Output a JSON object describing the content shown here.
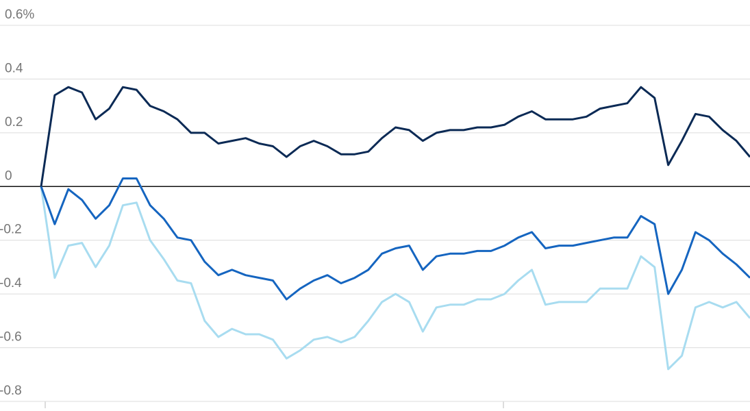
{
  "chart_data": {
    "type": "line",
    "ylim": [
      -0.8,
      0.6
    ],
    "yticks": [
      -0.8,
      -0.6,
      -0.4,
      -0.2,
      0,
      0.2,
      0.4,
      {
        "value": 0.6,
        "label": "0.6%"
      }
    ],
    "grid": true,
    "series": [
      {
        "color": "#0b2a55",
        "values": [
          0,
          0.34,
          0.37,
          0.35,
          0.25,
          0.29,
          0.37,
          0.36,
          0.3,
          0.28,
          0.25,
          0.2,
          0.2,
          0.16,
          0.17,
          0.18,
          0.16,
          0.15,
          0.11,
          0.15,
          0.17,
          0.15,
          0.12,
          0.12,
          0.13,
          0.18,
          0.22,
          0.21,
          0.17,
          0.2,
          0.21,
          0.21,
          0.22,
          0.22,
          0.23,
          0.26,
          0.28,
          0.25,
          0.25,
          0.25,
          0.26,
          0.29,
          0.3,
          0.31,
          0.37,
          0.33,
          0.08,
          0.17,
          0.27,
          0.26,
          0.21,
          0.17,
          0.11
        ]
      },
      {
        "color": "#1565c0",
        "values": [
          0,
          -0.14,
          -0.01,
          -0.05,
          -0.12,
          -0.07,
          0.03,
          0.03,
          -0.07,
          -0.12,
          -0.19,
          -0.2,
          -0.28,
          -0.33,
          -0.31,
          -0.33,
          -0.34,
          -0.35,
          -0.42,
          -0.38,
          -0.35,
          -0.33,
          -0.36,
          -0.34,
          -0.31,
          -0.25,
          -0.23,
          -0.22,
          -0.31,
          -0.26,
          -0.25,
          -0.25,
          -0.24,
          -0.24,
          -0.22,
          -0.19,
          -0.17,
          -0.23,
          -0.22,
          -0.22,
          -0.21,
          -0.2,
          -0.19,
          -0.19,
          -0.11,
          -0.14,
          -0.4,
          -0.31,
          -0.17,
          -0.2,
          -0.25,
          -0.29,
          -0.34
        ]
      },
      {
        "color": "#a8dcf0",
        "values": [
          0,
          -0.34,
          -0.22,
          -0.21,
          -0.3,
          -0.22,
          -0.07,
          -0.06,
          -0.2,
          -0.27,
          -0.35,
          -0.36,
          -0.5,
          -0.56,
          -0.53,
          -0.55,
          -0.55,
          -0.57,
          -0.64,
          -0.61,
          -0.57,
          -0.56,
          -0.58,
          -0.56,
          -0.5,
          -0.43,
          -0.4,
          -0.43,
          -0.54,
          -0.45,
          -0.44,
          -0.44,
          -0.42,
          -0.42,
          -0.4,
          -0.35,
          -0.31,
          -0.44,
          -0.43,
          -0.43,
          -0.43,
          -0.38,
          -0.38,
          -0.38,
          -0.26,
          -0.3,
          -0.68,
          -0.63,
          -0.45,
          -0.43,
          -0.45,
          -0.43,
          -0.49
        ]
      }
    ]
  }
}
